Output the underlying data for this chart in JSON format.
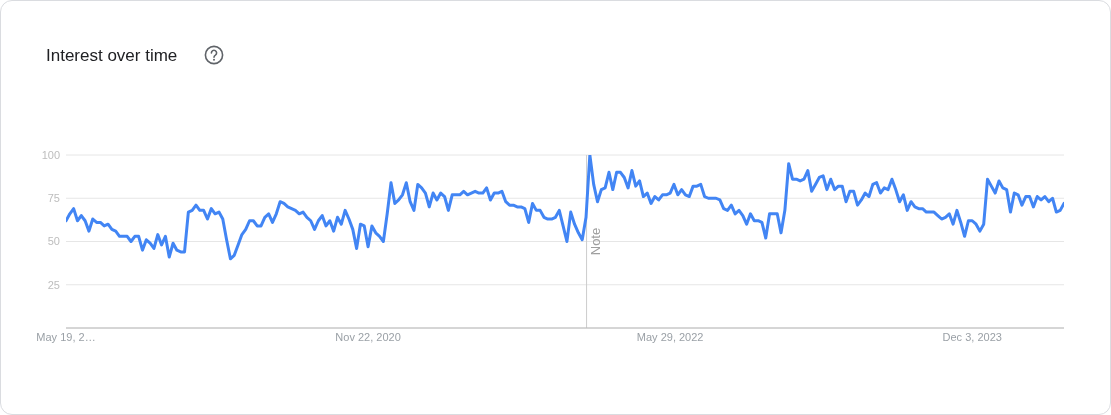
{
  "chart_data": {
    "type": "line",
    "title": "Interest over time",
    "x": [
      "2019-05-19",
      "2019-05-26",
      "2019-06-02",
      "2019-06-09",
      "2019-06-16",
      "2019-06-23",
      "2019-06-30",
      "2019-07-07",
      "2019-07-14",
      "2019-07-21",
      "2019-07-28",
      "2019-08-04",
      "2019-08-11",
      "2019-08-18",
      "2019-08-25",
      "2019-09-01",
      "2019-09-08",
      "2019-09-15",
      "2019-09-22",
      "2019-09-29",
      "2019-10-06",
      "2019-10-13",
      "2019-10-20",
      "2019-10-27",
      "2019-11-03",
      "2019-11-10",
      "2019-11-17",
      "2019-11-24",
      "2019-12-01",
      "2019-12-08",
      "2019-12-15",
      "2019-12-22",
      "2019-12-29",
      "2020-01-05",
      "2020-01-12",
      "2020-01-19",
      "2020-01-26",
      "2020-02-02",
      "2020-02-09",
      "2020-02-16",
      "2020-02-23",
      "2020-03-01",
      "2020-03-08",
      "2020-03-15",
      "2020-03-22",
      "2020-03-29",
      "2020-04-05",
      "2020-04-12",
      "2020-04-19",
      "2020-04-26",
      "2020-05-03",
      "2020-05-10",
      "2020-05-17",
      "2020-05-24",
      "2020-05-31",
      "2020-06-07",
      "2020-06-14",
      "2020-06-21",
      "2020-06-28",
      "2020-07-05",
      "2020-07-12",
      "2020-07-19",
      "2020-07-26",
      "2020-08-02",
      "2020-08-09",
      "2020-08-16",
      "2020-08-23",
      "2020-08-30",
      "2020-09-06",
      "2020-09-13",
      "2020-09-20",
      "2020-09-27",
      "2020-10-04",
      "2020-10-11",
      "2020-10-18",
      "2020-10-25",
      "2020-11-01",
      "2020-11-08",
      "2020-11-15",
      "2020-11-22",
      "2020-11-29",
      "2020-12-06",
      "2020-12-13",
      "2020-12-20",
      "2020-12-27",
      "2021-01-03",
      "2021-01-10",
      "2021-01-17",
      "2021-01-24",
      "2021-01-31",
      "2021-02-07",
      "2021-02-14",
      "2021-02-21",
      "2021-02-28",
      "2021-03-07",
      "2021-03-14",
      "2021-03-21",
      "2021-03-28",
      "2021-04-04",
      "2021-04-11",
      "2021-04-18",
      "2021-04-25",
      "2021-05-02",
      "2021-05-09",
      "2021-05-16",
      "2021-05-23",
      "2021-05-30",
      "2021-06-06",
      "2021-06-13",
      "2021-06-20",
      "2021-06-27",
      "2021-07-04",
      "2021-07-11",
      "2021-07-18",
      "2021-07-25",
      "2021-08-01",
      "2021-08-08",
      "2021-08-15",
      "2021-08-22",
      "2021-08-29",
      "2021-09-05",
      "2021-09-12",
      "2021-09-19",
      "2021-09-26",
      "2021-10-03",
      "2021-10-10",
      "2021-10-17",
      "2021-10-24",
      "2021-10-31",
      "2021-11-07",
      "2021-11-14",
      "2021-11-21",
      "2021-11-28",
      "2021-12-05",
      "2021-12-12",
      "2021-12-19",
      "2021-12-26",
      "2022-01-02",
      "2022-01-09",
      "2022-01-16",
      "2022-01-23",
      "2022-01-30",
      "2022-02-06",
      "2022-02-13",
      "2022-02-20",
      "2022-02-27",
      "2022-03-06",
      "2022-03-13",
      "2022-03-20",
      "2022-03-27",
      "2022-04-03",
      "2022-04-10",
      "2022-04-17",
      "2022-04-24",
      "2022-05-01",
      "2022-05-08",
      "2022-05-15",
      "2022-05-22",
      "2022-05-29",
      "2022-06-05",
      "2022-06-12",
      "2022-06-19",
      "2022-06-26",
      "2022-07-03",
      "2022-07-10",
      "2022-07-17",
      "2022-07-24",
      "2022-07-31",
      "2022-08-07",
      "2022-08-14",
      "2022-08-21",
      "2022-08-28",
      "2022-09-04",
      "2022-09-11",
      "2022-09-18",
      "2022-09-25",
      "2022-10-02",
      "2022-10-09",
      "2022-10-16",
      "2022-10-23",
      "2022-10-30",
      "2022-11-06",
      "2022-11-13",
      "2022-11-20",
      "2022-11-27",
      "2022-12-04",
      "2022-12-11",
      "2022-12-18",
      "2022-12-25",
      "2023-01-01",
      "2023-01-08",
      "2023-01-15",
      "2023-01-22",
      "2023-01-29",
      "2023-02-05",
      "2023-02-12",
      "2023-02-19",
      "2023-02-26",
      "2023-03-05",
      "2023-03-12",
      "2023-03-19",
      "2023-03-26",
      "2023-04-02",
      "2023-04-09",
      "2023-04-16",
      "2023-04-23",
      "2023-04-30",
      "2023-05-07",
      "2023-05-14",
      "2023-05-21",
      "2023-05-28",
      "2023-06-04",
      "2023-06-11",
      "2023-06-18",
      "2023-06-25",
      "2023-07-02",
      "2023-07-09",
      "2023-07-16",
      "2023-07-23",
      "2023-07-30",
      "2023-08-06",
      "2023-08-13",
      "2023-08-20",
      "2023-08-27",
      "2023-09-03",
      "2023-09-10",
      "2023-09-17",
      "2023-09-24",
      "2023-10-01",
      "2023-10-08",
      "2023-10-15",
      "2023-10-22",
      "2023-10-29",
      "2023-11-05",
      "2023-11-12",
      "2023-11-19",
      "2023-11-26",
      "2023-12-03",
      "2023-12-10",
      "2023-12-17",
      "2023-12-24",
      "2023-12-31",
      "2024-01-07",
      "2024-01-14",
      "2024-01-21",
      "2024-01-28",
      "2024-02-04",
      "2024-02-11",
      "2024-02-18",
      "2024-02-25",
      "2024-03-03",
      "2024-03-10",
      "2024-03-17",
      "2024-03-24",
      "2024-03-31",
      "2024-04-07",
      "2024-04-14",
      "2024-04-21",
      "2024-04-28",
      "2024-05-05",
      "2024-05-12",
      "2024-05-19"
    ],
    "series": [
      {
        "color": "#4285f4",
        "values": [
          62,
          66,
          69,
          62,
          65,
          62,
          56,
          63,
          61,
          61,
          59,
          60,
          57,
          56,
          53,
          53,
          53,
          50,
          53,
          53,
          45,
          51,
          49,
          46,
          54,
          48,
          53,
          41,
          49,
          45,
          44,
          44,
          67,
          68,
          71,
          68,
          68,
          63,
          69,
          66,
          67,
          63,
          51,
          40,
          42,
          48,
          54,
          57,
          62,
          62,
          59,
          59,
          64,
          66,
          61,
          66,
          73,
          72,
          70,
          69,
          68,
          66,
          67,
          64,
          62,
          57,
          62,
          65,
          59,
          62,
          56,
          64,
          60,
          68,
          63,
          57,
          46,
          60,
          59,
          47,
          59,
          55,
          53,
          50,
          66,
          84,
          72,
          74,
          77,
          84,
          73,
          68,
          83,
          81,
          78,
          70,
          78,
          74,
          78,
          76,
          68,
          77,
          77,
          77,
          79,
          77,
          78,
          79,
          78,
          78,
          81,
          74,
          78,
          78,
          79,
          73,
          71,
          71,
          70,
          70,
          69,
          61,
          72,
          68,
          68,
          64,
          63,
          63,
          64,
          68,
          59,
          50,
          67,
          60,
          55,
          51,
          64,
          100,
          83,
          73,
          80,
          81,
          90,
          80,
          90,
          90,
          87,
          81,
          91,
          82,
          85,
          76,
          78,
          72,
          76,
          74,
          77,
          77,
          78,
          83,
          77,
          80,
          77,
          76,
          82,
          82,
          83,
          76,
          75,
          75,
          75,
          74,
          69,
          68,
          71,
          66,
          68,
          65,
          60,
          66,
          62,
          62,
          61,
          52,
          66,
          66,
          66,
          55,
          68,
          95,
          86,
          86,
          85,
          86,
          91,
          79,
          83,
          87,
          88,
          80,
          86,
          80,
          82,
          82,
          73,
          79,
          79,
          71,
          74,
          78,
          76,
          83,
          84,
          78,
          81,
          80,
          86,
          80,
          73,
          77,
          68,
          73,
          70,
          69,
          69,
          67,
          67,
          67,
          65,
          63,
          64,
          66,
          60,
          68,
          61,
          53,
          62,
          62,
          60,
          56,
          60,
          86,
          82,
          78,
          85,
          81,
          80,
          67,
          78,
          77,
          71,
          76,
          76,
          70,
          76,
          74,
          76,
          73,
          75,
          67,
          68,
          72
        ]
      }
    ],
    "xlim": [
      "2019-05-19",
      "2024-05-19"
    ],
    "xticks": [
      {
        "value": "2019-05-19",
        "label": "May 19, 2…"
      },
      {
        "value": "2020-11-22",
        "label": "Nov 22, 2020"
      },
      {
        "value": "2022-05-29",
        "label": "May 29, 2022"
      },
      {
        "value": "2023-12-03",
        "label": "Dec 3, 2023"
      }
    ],
    "ylim": [
      0,
      100
    ],
    "yticks": [
      25,
      50,
      75,
      100
    ],
    "grid": "y",
    "ref_lines": [
      {
        "axis": "x",
        "value": "2021-12-27",
        "label": "Note",
        "color": "#cccccc"
      }
    ]
  }
}
